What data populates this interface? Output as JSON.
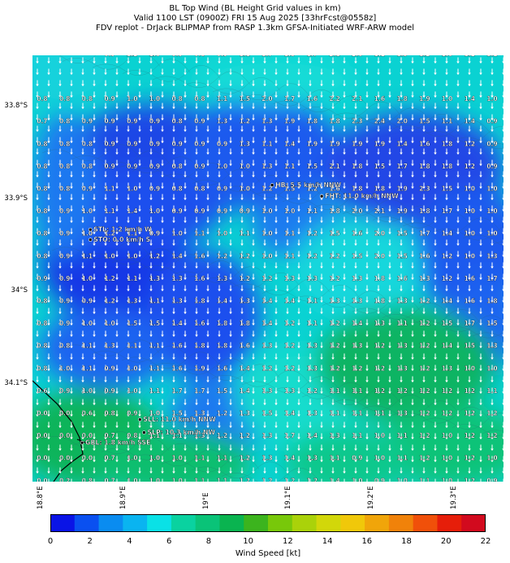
{
  "header": {
    "line1": "BL Top Wind (BL Height Grid values in km)",
    "line2": "Valid 1100 LST (0900Z) FRI 15 Aug 2025 [33hrFcst@0558z]",
    "line3": "FDV replot - DrJack BLIPMAP from RASP 1.3km GFSA-Initiated WRF-ARW model"
  },
  "axes": {
    "y_labels": [
      "33.8°S",
      "33.9°S",
      "34°S",
      "34.1°S"
    ],
    "y_values": [
      -33.8,
      -33.9,
      -34.0,
      -34.1
    ],
    "x_labels": [
      "18.8°E",
      "18.9°E",
      "19°E",
      "19.1°E",
      "19.2°E",
      "19.3°E"
    ],
    "x_values": [
      18.8,
      18.9,
      19.0,
      19.1,
      19.2,
      19.3
    ],
    "lon_range": [
      18.79,
      19.36
    ],
    "lat_range": [
      -34.205,
      -33.745
    ]
  },
  "colorbar": {
    "label": "Wind Speed [kt]",
    "ticks": [
      "0",
      "2",
      "4",
      "6",
      "8",
      "10",
      "12",
      "14",
      "16",
      "18",
      "20",
      "22"
    ],
    "range": [
      0,
      22
    ],
    "colors": [
      "#0a14e6",
      "#0a50f0",
      "#0a8cf0",
      "#0ab4f0",
      "#0ae1e6",
      "#0ad2a0",
      "#0ac378",
      "#0ab450",
      "#3cb41e",
      "#78c80a",
      "#aad20a",
      "#d2d70a",
      "#f0c80a",
      "#f0a50a",
      "#f0820a",
      "#f0500a",
      "#e61e0a",
      "#d20a1e"
    ]
  },
  "stations": [
    {
      "id": "hb",
      "label": "HB: 5.5 km/h NNW",
      "lon": 19.08,
      "lat": -33.885
    },
    {
      "id": "fht",
      "label": "FHT: 11.0 km/h NNW",
      "lon": 19.14,
      "lat": -33.897
    },
    {
      "id": "stl",
      "label": "STL: 1.2 km/h W",
      "lon": 18.86,
      "lat": -33.933
    },
    {
      "id": "sto",
      "label": "STO: 0.0 km/h S",
      "lon": 18.86,
      "lat": -33.944
    },
    {
      "id": "sll",
      "label": "SLL: 11.0 km/h NNW",
      "lon": 18.92,
      "lat": -34.138
    },
    {
      "id": "slp",
      "label": "SLP: 10.3 km/h NW",
      "lon": 18.925,
      "lat": -34.152
    },
    {
      "id": "gbl",
      "label": "GBL: 1.8 km/h SSE",
      "lon": 18.85,
      "lat": -34.163
    }
  ],
  "grid_values": [
    [
      "0.9",
      "1.2",
      "1.0",
      "0.9",
      "0.8",
      "0.9",
      "1.1",
      "1.7",
      "1.5",
      "1.7",
      "2.1",
      "2.0",
      "1.2",
      "1.3",
      "1.2",
      "1.0",
      "1.2",
      "1.2"
    ],
    [
      "0.8",
      "0.8",
      "0.8",
      "0.9",
      "1.0",
      "1.0",
      "0.8",
      "0.8",
      "1.1",
      "1.5",
      "2.0",
      "1.7",
      "1.6",
      "2.2",
      "2.1",
      "1.6",
      "1.8",
      "1.9",
      "1.0",
      "1.4",
      "1.0"
    ],
    [
      "0.7",
      "0.8",
      "0.9",
      "0.9",
      "0.9",
      "0.9",
      "0.8",
      "0.9",
      "1.3",
      "1.2",
      "1.3",
      "1.9",
      "1.8",
      "1.8",
      "2.3",
      "2.4",
      "2.0",
      "1.5",
      "1.1",
      "1.4",
      "0.9"
    ],
    [
      "0.8",
      "0.8",
      "0.8",
      "0.9",
      "0.9",
      "0.9",
      "0.9",
      "0.9",
      "0.9",
      "1.3",
      "1.1",
      "1.4",
      "1.9",
      "1.9",
      "1.9",
      "1.9",
      "1.4",
      "1.6",
      "1.8",
      "1.2",
      "0.9"
    ],
    [
      "0.8",
      "0.8",
      "0.8",
      "0.9",
      "0.9",
      "0.9",
      "0.8",
      "0.9",
      "1.0",
      "1.0",
      "1.3",
      "1.1",
      "1.5",
      "2.1",
      "1.8",
      "1.5",
      "1.7",
      "1.8",
      "1.8",
      "1.2",
      "0.9"
    ],
    [
      "0.8",
      "0.8",
      "0.9",
      "1.1",
      "1.0",
      "0.9",
      "0.8",
      "0.8",
      "0.9",
      "1.0",
      "1.2",
      "1.5",
      "1.2",
      "1.6",
      "1.8",
      "1.8",
      "1.9",
      "2.3",
      "1.5",
      "1.0",
      "1.0"
    ],
    [
      "0.8",
      "0.9",
      "1.0",
      "1.1",
      "1.4",
      "1.0",
      "0.9",
      "0.9",
      "0.9",
      "0.9",
      "1.0",
      "1.0",
      "1.1",
      "1.8",
      "2.0",
      "2.1",
      "1.9",
      "1.8",
      "1.7",
      "1.0",
      "1.0"
    ],
    [
      "0.8",
      "0.9",
      "1.0",
      "1.2",
      "1.1",
      "0.9",
      "1.0",
      "1.1",
      "1.0",
      "1.1",
      "1.0",
      "1.1",
      "1.2",
      "1.5",
      "1.6",
      "2.0",
      "1.5",
      "1.7",
      "1.4",
      "1.0",
      "1.0"
    ],
    [
      "0.8",
      "0.9",
      "1.1",
      "1.0",
      "1.0",
      "1.2",
      "1.4",
      "1.6",
      "1.2",
      "1.2",
      "1.0",
      "1.1",
      "1.2",
      "1.2",
      "1.5",
      "2.0",
      "1.5",
      "1.6",
      "1.2",
      "1.0",
      "1.3"
    ],
    [
      "0.9",
      "0.9",
      "1.0",
      "1.2",
      "1.1",
      "1.3",
      "1.3",
      "1.6",
      "1.3",
      "1.2",
      "1.2",
      "1.3",
      "1.3",
      "1.2",
      "1.3",
      "1.8",
      "1.6",
      "1.3",
      "1.2",
      "1.6",
      "1.7"
    ],
    [
      "0.8",
      "0.9",
      "0.9",
      "1.2",
      "1.3",
      "1.1",
      "1.3",
      "1.8",
      "1.4",
      "1.3",
      "1.4",
      "1.4",
      "1.1",
      "1.3",
      "1.3",
      "1.8",
      "1.3",
      "1.2",
      "1.4",
      "1.6",
      "1.8"
    ],
    [
      "0.8",
      "0.9",
      "1.0",
      "1.0",
      "1.5",
      "1.5",
      "1.4",
      "1.6",
      "1.8",
      "1.8",
      "1.4",
      "1.2",
      "1.1",
      "1.2",
      "1.4",
      "1.3",
      "1.1",
      "1.2",
      "1.5",
      "1.7",
      "1.5"
    ],
    [
      "0.8",
      "0.8",
      "1.1",
      "1.3",
      "1.1",
      "1.1",
      "1.6",
      "1.8",
      "1.8",
      "1.6",
      "1.3",
      "1.2",
      "1.3",
      "1.2",
      "1.3",
      "1.2",
      "1.3",
      "1.2",
      "1.4",
      "1.5",
      "1.3"
    ],
    [
      "0.8",
      "1.0",
      "1.1",
      "0.9",
      "1.0",
      "1.1",
      "1.6",
      "1.9",
      "1.6",
      "1.4",
      "1.2",
      "1.2",
      "1.3",
      "1.2",
      "1.2",
      "1.2",
      "1.3",
      "1.2",
      "1.3",
      "1.0",
      "1.0"
    ],
    [
      "0.6",
      "0.9",
      "1.0",
      "0.9",
      "1.0",
      "1.1",
      "1.7",
      "1.7",
      "1.5",
      "1.4",
      "1.3",
      "1.3",
      "1.2",
      "1.1",
      "1.1",
      "1.2",
      "1.2",
      "1.2",
      "1.2",
      "1.2",
      "1.1"
    ],
    [
      "0.0",
      "0.0",
      "0.6",
      "0.8",
      "0.9",
      "1.0",
      "1.5",
      "1.3",
      "1.2",
      "1.3",
      "1.5",
      "1.4",
      "1.3",
      "1.1",
      "1.1",
      "1.1",
      "1.3",
      "1.2",
      "1.2",
      "1.2",
      "1.2"
    ],
    [
      "0.0",
      "0.0",
      "0.0",
      "0.7",
      "0.8",
      "1.1",
      "1.1",
      "1.3",
      "1.2",
      "1.2",
      "1.3",
      "1.7",
      "1.4",
      "1.3",
      "1.1",
      "1.0",
      "1.1",
      "1.2",
      "1.0",
      "1.2",
      "1.2"
    ],
    [
      "0.0",
      "0.0",
      "0.0",
      "0.7",
      "1.0",
      "1.0",
      "1.0",
      "1.1",
      "1.1",
      "1.2",
      "1.3",
      "1.4",
      "1.3",
      "1.1",
      "0.9",
      "1.0",
      "1.1",
      "1.2",
      "1.0",
      "1.2",
      "1.0"
    ],
    [
      "0.0",
      "0.2",
      "0.8",
      "0.7",
      "1.0",
      "1.0",
      "1.0",
      "1.1",
      "1.1",
      "1.2",
      "1.2",
      "1.2",
      "1.2",
      "1.4",
      "1.0",
      "0.9",
      "1.0",
      "1.1",
      "1.0",
      "1.2",
      "0.9"
    ],
    [
      "0.0",
      "0.2",
      "0.9",
      "1.0",
      "1.2",
      "1.3",
      "1.2",
      "1.1",
      "1.2",
      "1.2",
      "1.1",
      "1.1",
      "1.2",
      "1.3",
      "1.1",
      "0.9",
      "1.0",
      "1.0",
      "0.9",
      "0.9",
      "0.9"
    ]
  ]
}
